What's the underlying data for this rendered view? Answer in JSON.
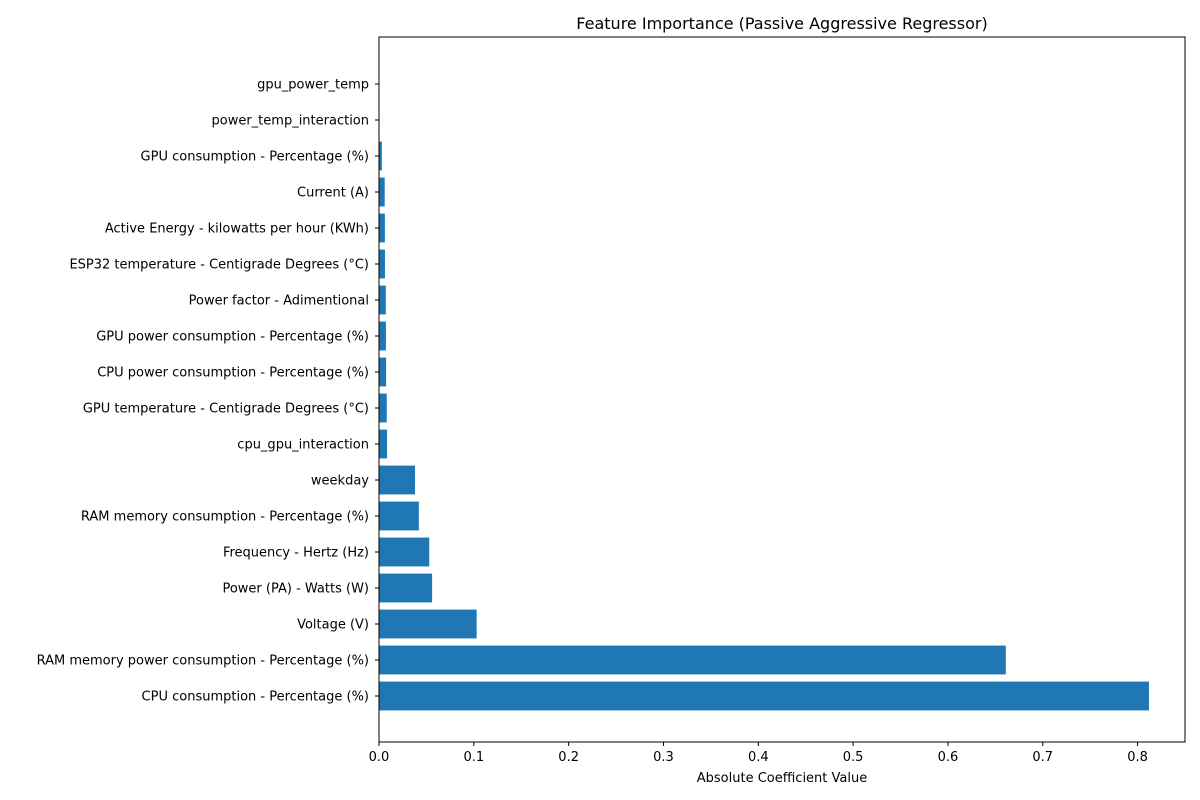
{
  "chart_data": {
    "type": "bar",
    "orientation": "horizontal",
    "title": "Feature Importance (Passive Aggressive Regressor)",
    "xlabel": "Absolute Coefficient Value",
    "ylabel": "",
    "xlim": [
      0,
      0.85
    ],
    "xticks": [
      "0.0",
      "0.1",
      "0.2",
      "0.3",
      "0.4",
      "0.5",
      "0.6",
      "0.7",
      "0.8"
    ],
    "grid": false,
    "bar_color": "#1f77b4",
    "categories": [
      "CPU consumption - Percentage (%)",
      "RAM memory power consumption - Percentage (%)",
      "Voltage (V)",
      "Power (PA) - Watts (W)",
      "Frequency - Hertz (Hz)",
      "RAM memory consumption - Percentage (%)",
      "weekday",
      "cpu_gpu_interaction",
      "GPU temperature - Centigrade Degrees (°C)",
      "CPU power consumption - Percentage (%)",
      "GPU power consumption - Percentage (%)",
      "Power factor - Adimentional",
      "ESP32 temperature - Centigrade Degrees (°C)",
      "Active Energy - kilowatts per hour (KWh)",
      "Current (A)",
      "GPU consumption - Percentage (%)",
      "power_temp_interaction",
      "gpu_power_temp"
    ],
    "values": [
      0.812,
      0.661,
      0.103,
      0.056,
      0.053,
      0.042,
      0.038,
      0.0085,
      0.0082,
      0.0075,
      0.0073,
      0.0072,
      0.0063,
      0.0062,
      0.006,
      0.003,
      0.0,
      0.0
    ]
  }
}
